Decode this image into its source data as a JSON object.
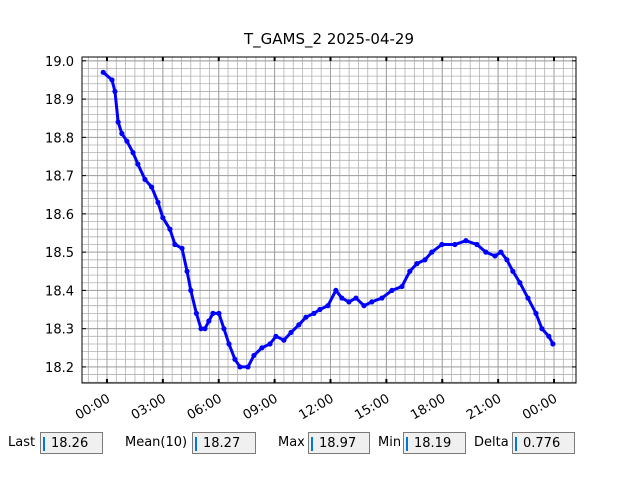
{
  "chart_data": {
    "type": "line",
    "title": "T_GAMS_2 2025-04-29",
    "x": [
      -0.2,
      0.27,
      0.43,
      0.6,
      0.8,
      1.07,
      1.4,
      1.66,
      2.04,
      2.4,
      2.74,
      3.0,
      3.38,
      3.65,
      4.03,
      4.3,
      4.5,
      4.8,
      5.05,
      5.26,
      5.47,
      5.69,
      6.01,
      6.28,
      6.55,
      6.87,
      7.14,
      7.57,
      7.89,
      8.32,
      8.75,
      9.07,
      9.5,
      9.88,
      10.3,
      10.68,
      11.11,
      11.43,
      11.86,
      12.29,
      12.61,
      12.99,
      13.37,
      13.8,
      14.22,
      14.76,
      15.3,
      15.83,
      16.26,
      16.64,
      17.07,
      17.44,
      17.98,
      18.68,
      19.27,
      19.86,
      20.34,
      20.83,
      21.15,
      21.47,
      21.79,
      22.17,
      22.6,
      23.03,
      23.35,
      23.72,
      23.94
    ],
    "series": [
      {
        "color": "#0000ff",
        "values": [
          18.97,
          18.95,
          18.92,
          18.84,
          18.81,
          18.79,
          18.76,
          18.73,
          18.69,
          18.67,
          18.63,
          18.59,
          18.56,
          18.52,
          18.51,
          18.45,
          18.4,
          18.34,
          18.3,
          18.3,
          18.32,
          18.34,
          18.34,
          18.3,
          18.26,
          18.22,
          18.2,
          18.2,
          18.23,
          18.25,
          18.26,
          18.28,
          18.27,
          18.29,
          18.31,
          18.33,
          18.34,
          18.35,
          18.36,
          18.4,
          18.38,
          18.37,
          18.38,
          18.36,
          18.37,
          18.38,
          18.4,
          18.41,
          18.45,
          18.47,
          18.48,
          18.5,
          18.52,
          18.52,
          18.53,
          18.52,
          18.5,
          18.49,
          18.5,
          18.48,
          18.45,
          18.42,
          18.38,
          18.34,
          18.3,
          18.28,
          18.26
        ]
      }
    ],
    "xlim": [
      -1.34,
      25.18
    ],
    "xticks": [
      {
        "value": 0,
        "label": "00:00"
      },
      {
        "value": 3,
        "label": "03:00"
      },
      {
        "value": 6,
        "label": "06:00"
      },
      {
        "value": 9,
        "label": "09:00"
      },
      {
        "value": 12,
        "label": "12:00"
      },
      {
        "value": 15,
        "label": "15:00"
      },
      {
        "value": 18,
        "label": "18:00"
      },
      {
        "value": 21,
        "label": "21:00"
      },
      {
        "value": 24,
        "label": "00:00"
      }
    ],
    "ylim": [
      18.158,
      19.01
    ],
    "yticks": [
      {
        "value": 18.2,
        "label": "18.2"
      },
      {
        "value": 18.3,
        "label": "18.3"
      },
      {
        "value": 18.4,
        "label": "18.4"
      },
      {
        "value": 18.5,
        "label": "18.5"
      },
      {
        "value": 18.6,
        "label": "18.6"
      },
      {
        "value": 18.7,
        "label": "18.7"
      },
      {
        "value": 18.8,
        "label": "18.8"
      },
      {
        "value": 18.9,
        "label": "18.9"
      },
      {
        "value": 19.0,
        "label": "19.0"
      }
    ],
    "grid": true,
    "minor_grid_step": {
      "x": 0.5,
      "y": 0.02
    }
  },
  "stats": [
    {
      "label": "Last",
      "value": 18.26
    },
    {
      "label": "Mean(10)",
      "value": 18.27
    },
    {
      "label": "Max",
      "value": 18.97
    },
    {
      "label": "Min",
      "value": 18.19
    },
    {
      "label": "Delta",
      "value": 0.776
    }
  ]
}
